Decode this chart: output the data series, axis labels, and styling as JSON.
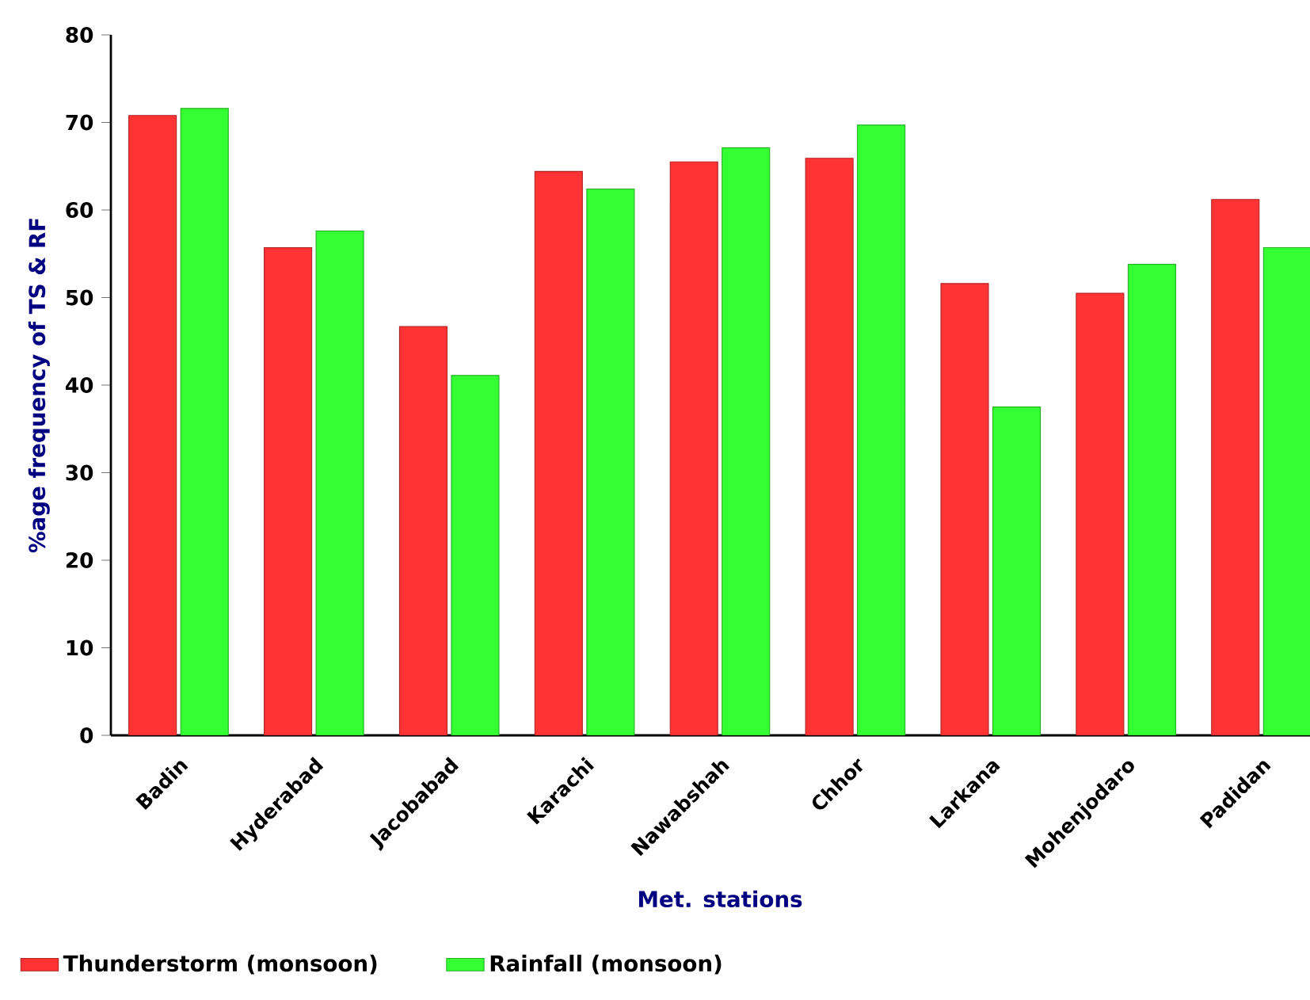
{
  "chart_data": {
    "type": "bar",
    "xlabel": "Met. stations",
    "ylabel": "%age frequency of TS & RF",
    "categories": [
      "Badin",
      "Hyderabad",
      "Jacobabad",
      "Karachi",
      "Nawabshah",
      "Chhor",
      "Larkana",
      "Mohenjodaro",
      "Padidan"
    ],
    "series": [
      {
        "name": "Thunderstorm (monsoon)",
        "color": "#ff3333",
        "values": [
          70.8,
          55.7,
          46.7,
          64.4,
          65.5,
          65.9,
          51.6,
          50.5,
          61.2
        ]
      },
      {
        "name": "Rainfall (monsoon)",
        "color": "#33ff33",
        "values": [
          71.6,
          57.6,
          41.1,
          62.4,
          67.1,
          69.7,
          37.5,
          53.8,
          55.7
        ]
      }
    ],
    "ylim": [
      0,
      80
    ],
    "yticks": [
      0,
      10,
      20,
      30,
      40,
      50,
      60,
      70,
      80
    ],
    "grid": false,
    "legend": "bottom left"
  }
}
